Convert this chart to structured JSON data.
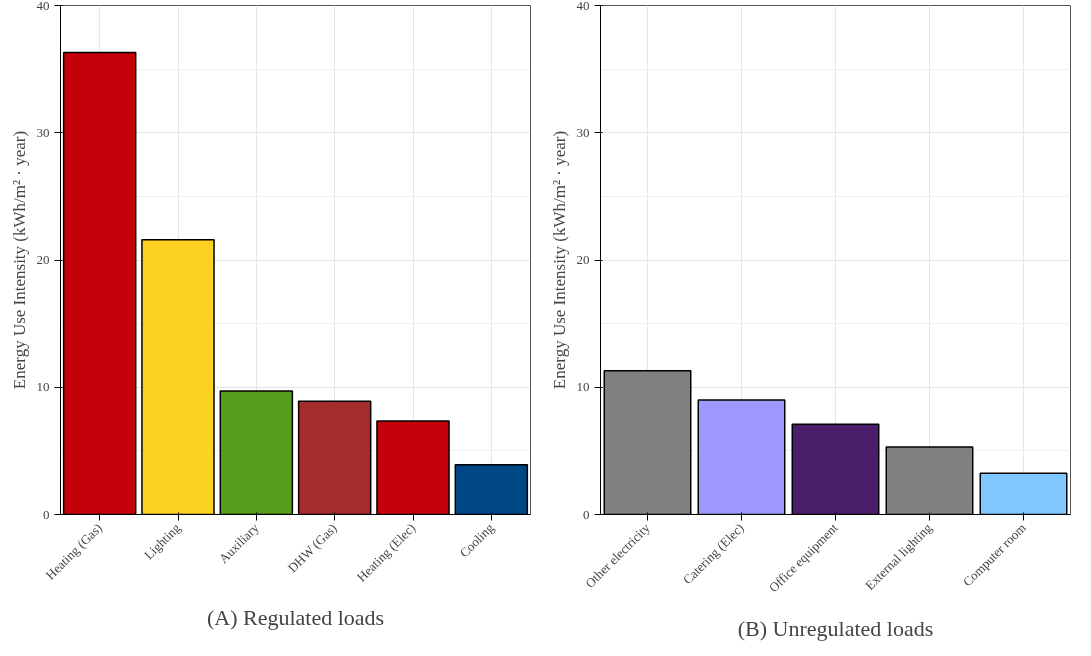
{
  "chart_data": [
    {
      "type": "bar",
      "title": "(A) Regulated loads",
      "ylabel": "Energy Use Intensity (kWh/m² · year)",
      "categories": [
        "Heating (Gas)",
        "Lighting",
        "Auxiliary",
        "DHW (Gas)",
        "Heating (Elec)",
        "Cooling"
      ],
      "values": [
        36.3,
        21.6,
        9.7,
        8.9,
        7.35,
        3.9
      ],
      "colors": [
        "#c4000b",
        "#fdd11f",
        "#569d1e",
        "#a62b2b",
        "#c4000b",
        "#004785"
      ],
      "ylim": [
        0,
        40
      ],
      "yticks": [
        0,
        10,
        20,
        30,
        40
      ],
      "grid": true
    },
    {
      "type": "bar",
      "title": "(B) Unregulated loads",
      "ylabel": "Energy Use Intensity (kWh/m² · year)",
      "categories": [
        "Other electricity",
        "Catering (Elec)",
        "Office equipment",
        "External lighting",
        "Computer room"
      ],
      "values": [
        11.3,
        9.0,
        7.1,
        5.3,
        3.25
      ],
      "colors": [
        "#808080",
        "#9c98ff",
        "#4a1e6b",
        "#808080",
        "#80c8ff"
      ],
      "ylim": [
        0,
        40
      ],
      "yticks": [
        0,
        10,
        20,
        30,
        40
      ],
      "grid": true
    }
  ]
}
